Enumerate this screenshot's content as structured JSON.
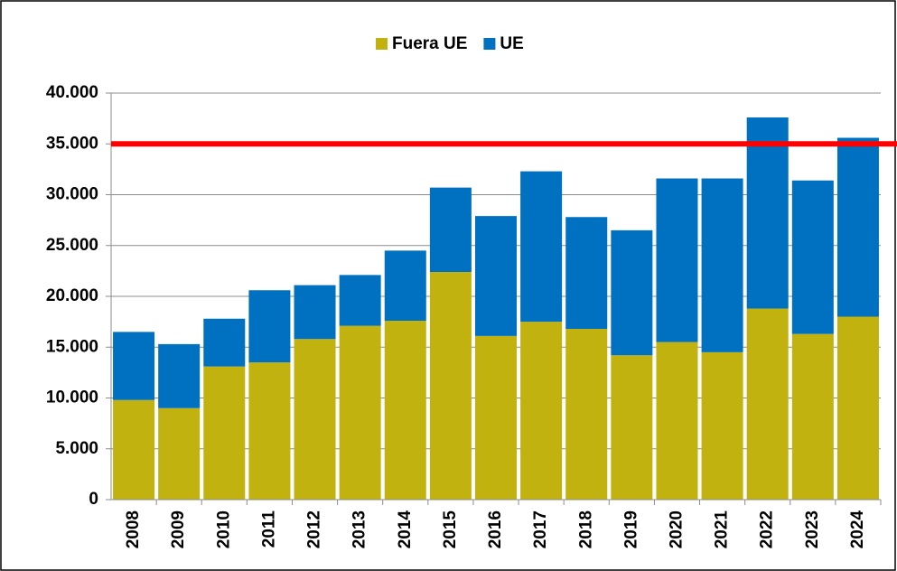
{
  "chart_data": {
    "type": "stacked-bar",
    "categories": [
      "2008",
      "2009",
      "2010",
      "2011",
      "2012",
      "2013",
      "2014",
      "2015",
      "2016",
      "2017",
      "2018",
      "2019",
      "2020",
      "2021",
      "2022",
      "2023",
      "2024"
    ],
    "series": [
      {
        "name": "Fuera UE",
        "color": "#c2b210",
        "values": [
          9800,
          9000,
          13100,
          13500,
          15800,
          17100,
          17600,
          22400,
          16100,
          17500,
          16800,
          14200,
          15500,
          14500,
          18800,
          16300,
          18000
        ]
      },
      {
        "name": "UE",
        "color": "#0070c0",
        "values": [
          6700,
          6300,
          4700,
          7100,
          5300,
          5000,
          6900,
          8300,
          11800,
          14800,
          11000,
          12300,
          16100,
          17100,
          18800,
          15100,
          17600
        ]
      }
    ],
    "ylim": [
      0,
      40000
    ],
    "yticks": [
      0,
      {
        "value": 5000,
        "label": "5.000"
      },
      {
        "value": 10000,
        "label": "10.000"
      },
      {
        "value": 15000,
        "label": "15.000"
      },
      {
        "value": 20000,
        "label": "20.000"
      },
      {
        "value": 25000,
        "label": "25.000"
      },
      {
        "value": 30000,
        "label": "30.000"
      },
      {
        "value": 35000,
        "label": "35.000"
      },
      {
        "value": 40000,
        "label": "40.000"
      }
    ],
    "grid": true,
    "reference_line": {
      "value": 35000,
      "color": "#ff0000"
    }
  }
}
